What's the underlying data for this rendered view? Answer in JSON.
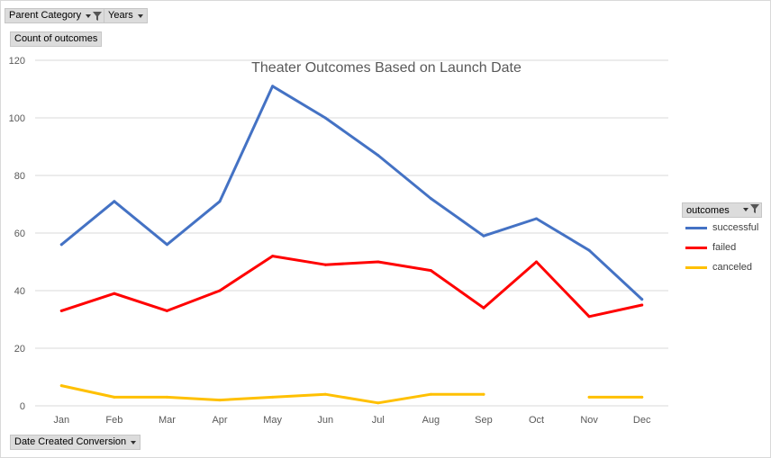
{
  "pivot": {
    "parent_category_label": "Parent Category",
    "years_label": "Years",
    "values_label": "Count of outcomes",
    "axis_field_label": "Date Created Conversion",
    "legend_field_label": "outcomes"
  },
  "colors": {
    "successful": "#4472c4",
    "failed": "#ff0000",
    "canceled": "#ffc000"
  },
  "chart_data": {
    "type": "line",
    "title": "Theater Outcomes Based on Launch Date",
    "xlabel": "",
    "ylabel": "",
    "ylim": [
      0,
      120
    ],
    "y_ticks": [
      0,
      20,
      40,
      60,
      80,
      100,
      120
    ],
    "grid": true,
    "legend_position": "right",
    "categories": [
      "Jan",
      "Feb",
      "Mar",
      "Apr",
      "May",
      "Jun",
      "Jul",
      "Aug",
      "Sep",
      "Oct",
      "Nov",
      "Dec"
    ],
    "series": [
      {
        "name": "successful",
        "color": "#4472c4",
        "values": [
          56,
          71,
          56,
          71,
          111,
          100,
          87,
          72,
          59,
          65,
          54,
          37
        ]
      },
      {
        "name": "failed",
        "color": "#ff0000",
        "values": [
          33,
          39,
          33,
          40,
          52,
          49,
          50,
          47,
          34,
          50,
          31,
          35
        ]
      },
      {
        "name": "canceled",
        "color": "#ffc000",
        "values": [
          7,
          3,
          3,
          2,
          3,
          4,
          1,
          4,
          4,
          null,
          3,
          3
        ]
      }
    ]
  }
}
